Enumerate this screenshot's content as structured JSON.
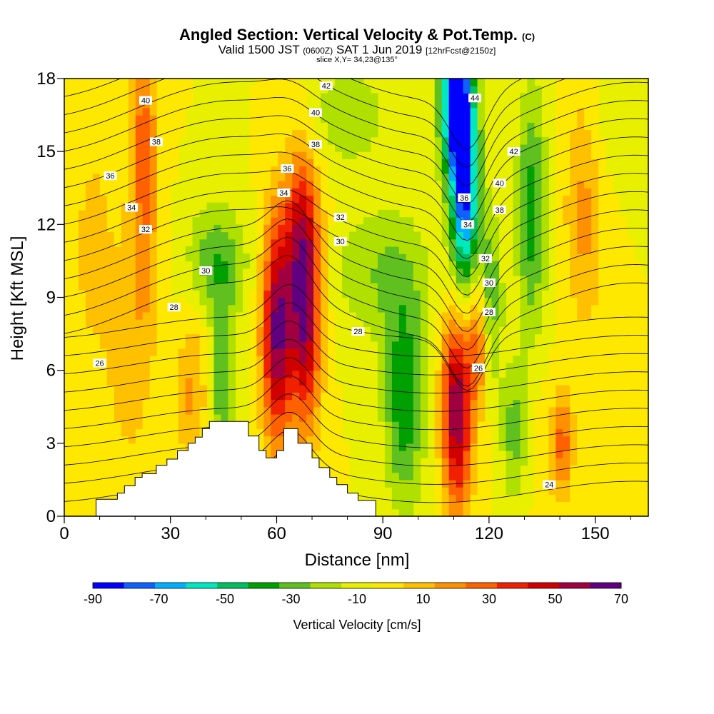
{
  "header": {
    "title": "Angled Section: Vertical Velocity & Pot.Temp.",
    "copyright": "(C)",
    "valid_prefix": "Valid 1500 JST",
    "valid_utc": "(0600Z)",
    "valid_date": "SAT 1 Jun 2019",
    "forecast": "[12hrFcst@2150z]",
    "slice": "slice X,Y= 34,23@135°"
  },
  "colorbar": {
    "label": "Vertical Velocity [cm/s]",
    "tick_labels": [
      "-90",
      "-70",
      "-50",
      "-30",
      "-10",
      "10",
      "30",
      "50",
      "70"
    ],
    "colors": [
      "#0000ff",
      "#1060ff",
      "#00b0ff",
      "#00e8c0",
      "#00c060",
      "#00a000",
      "#60c020",
      "#b0e000",
      "#e8f000",
      "#ffe800",
      "#ffc000",
      "#ff9000",
      "#ff6000",
      "#f02000",
      "#d00000",
      "#a00040",
      "#600080"
    ]
  },
  "chart_data": {
    "type": "contour",
    "xlabel": "Distance [nm]",
    "ylabel": "Height [Kft MSL]",
    "xlim": [
      0,
      165
    ],
    "ylim": [
      0,
      18
    ],
    "xticks": [
      0,
      30,
      60,
      90,
      120,
      150
    ],
    "yticks": [
      0,
      3,
      6,
      9,
      12,
      15,
      18
    ],
    "fill_variable": "Vertical Velocity [cm/s]",
    "fill_levels": [
      -90,
      -80,
      -70,
      -60,
      -50,
      -40,
      -30,
      -20,
      -10,
      0,
      10,
      20,
      30,
      40,
      50,
      60,
      70
    ],
    "contour_variable": "Pot.Temp.",
    "contour_labels": [
      {
        "text": "40",
        "x": 23,
        "y": 17.1
      },
      {
        "text": "38",
        "x": 26,
        "y": 15.4
      },
      {
        "text": "36",
        "x": 13,
        "y": 14.0
      },
      {
        "text": "34",
        "x": 19,
        "y": 12.7
      },
      {
        "text": "32",
        "x": 23,
        "y": 11.8
      },
      {
        "text": "30",
        "x": 40,
        "y": 10.1
      },
      {
        "text": "28",
        "x": 31,
        "y": 8.6
      },
      {
        "text": "26",
        "x": 10,
        "y": 6.3
      },
      {
        "text": "42",
        "x": 74,
        "y": 17.7
      },
      {
        "text": "40",
        "x": 71,
        "y": 16.6
      },
      {
        "text": "38",
        "x": 71,
        "y": 15.3
      },
      {
        "text": "36",
        "x": 63,
        "y": 14.3
      },
      {
        "text": "34",
        "x": 62,
        "y": 13.3
      },
      {
        "text": "32",
        "x": 78,
        "y": 12.3
      },
      {
        "text": "30",
        "x": 78,
        "y": 11.3
      },
      {
        "text": "28",
        "x": 83,
        "y": 7.6
      },
      {
        "text": "44",
        "x": 116,
        "y": 17.2
      },
      {
        "text": "42",
        "x": 127,
        "y": 15.0
      },
      {
        "text": "40",
        "x": 123,
        "y": 13.7
      },
      {
        "text": "38",
        "x": 123,
        "y": 12.6
      },
      {
        "text": "36",
        "x": 113,
        "y": 13.1
      },
      {
        "text": "34",
        "x": 114,
        "y": 12.0
      },
      {
        "text": "32",
        "x": 119,
        "y": 10.6
      },
      {
        "text": "30",
        "x": 120,
        "y": 9.6
      },
      {
        "text": "28",
        "x": 120,
        "y": 8.4
      },
      {
        "text": "26",
        "x": 117,
        "y": 6.1
      },
      {
        "text": "24",
        "x": 137,
        "y": 1.3
      }
    ],
    "terrain_profile": [
      [
        0,
        0
      ],
      [
        9,
        0
      ],
      [
        9,
        0.7
      ],
      [
        15,
        0.7
      ],
      [
        15,
        0.95
      ],
      [
        17,
        0.95
      ],
      [
        17,
        1.25
      ],
      [
        20,
        1.25
      ],
      [
        20,
        1.6
      ],
      [
        22,
        1.6
      ],
      [
        22,
        1.75
      ],
      [
        26,
        1.75
      ],
      [
        26,
        2.1
      ],
      [
        29,
        2.1
      ],
      [
        29,
        2.35
      ],
      [
        32,
        2.35
      ],
      [
        32,
        2.7
      ],
      [
        35,
        2.7
      ],
      [
        35,
        3.0
      ],
      [
        37,
        3.0
      ],
      [
        37,
        3.25
      ],
      [
        39,
        3.25
      ],
      [
        39,
        3.6
      ],
      [
        41,
        3.6
      ],
      [
        41,
        3.9
      ],
      [
        52,
        3.9
      ],
      [
        52,
        3.3
      ],
      [
        55,
        3.3
      ],
      [
        55,
        2.7
      ],
      [
        57,
        2.7
      ],
      [
        57,
        2.4
      ],
      [
        60,
        2.4
      ],
      [
        60,
        2.7
      ],
      [
        62,
        2.7
      ],
      [
        62,
        3.6
      ],
      [
        66,
        3.6
      ],
      [
        66,
        3.0
      ],
      [
        70,
        3.0
      ],
      [
        70,
        2.4
      ],
      [
        72,
        2.4
      ],
      [
        72,
        2.0
      ],
      [
        75,
        2.0
      ],
      [
        75,
        1.6
      ],
      [
        77,
        1.6
      ],
      [
        77,
        1.3
      ],
      [
        80,
        1.3
      ],
      [
        80,
        0.95
      ],
      [
        83,
        0.95
      ],
      [
        83,
        0.65
      ],
      [
        88,
        0.65
      ],
      [
        88,
        0
      ],
      [
        165,
        0
      ]
    ]
  }
}
